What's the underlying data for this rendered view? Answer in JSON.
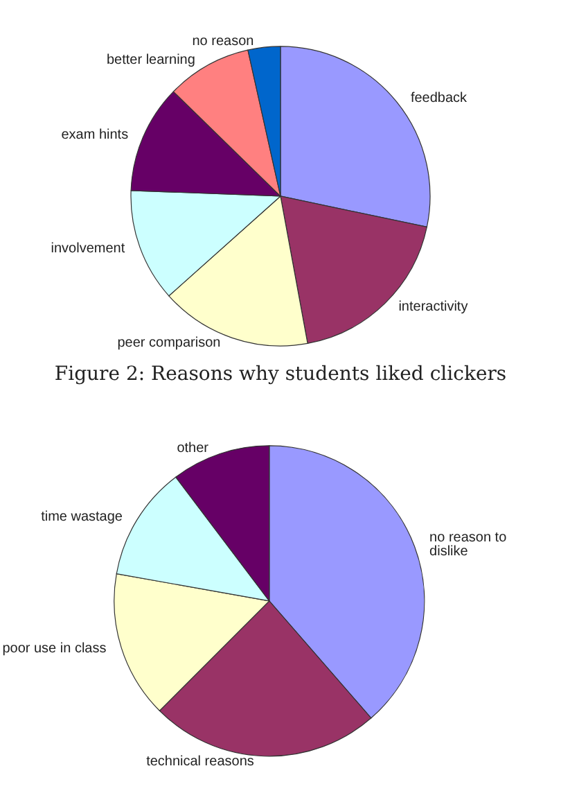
{
  "chart_data": [
    {
      "type": "pie",
      "categories": [
        "feedback",
        "interactivity",
        "peer comparison",
        "involvement",
        "exam hints",
        "better learning",
        "no reason"
      ],
      "values": [
        28.3,
        18.8,
        16.3,
        12.2,
        11.7,
        9.2,
        3.5
      ],
      "colors": [
        "#9999ff",
        "#993366",
        "#ffffcc",
        "#ccffff",
        "#660066",
        "#ff8080",
        "#0066cc"
      ],
      "annotations": [
        "Figure 2: Reasons why students liked clickers"
      ]
    },
    {
      "type": "pie",
      "categories": [
        "no reason to dislike",
        "technical reasons",
        "poor use in class",
        "time wastage",
        "other"
      ],
      "values": [
        38.6,
        23.9,
        15.3,
        11.9,
        10.3
      ],
      "colors": [
        "#9999ff",
        "#993366",
        "#ffffcc",
        "#ccffff",
        "#660066"
      ]
    }
  ]
}
